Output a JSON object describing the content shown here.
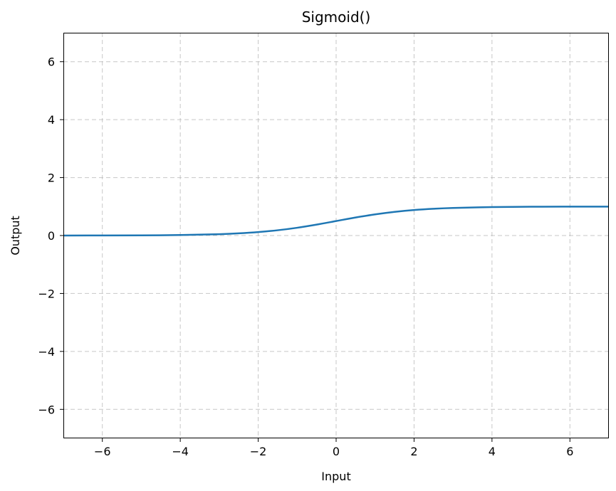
{
  "chart_data": {
    "type": "line",
    "title": "Sigmoid()",
    "xlabel": "Input",
    "ylabel": "Output",
    "xlim": [
      -7,
      7
    ],
    "ylim": [
      -7,
      7
    ],
    "xticks": [
      -6,
      -4,
      -2,
      0,
      2,
      4,
      6
    ],
    "yticks": [
      -6,
      -4,
      -2,
      0,
      2,
      4,
      6
    ],
    "xtick_labels": [
      "−6",
      "−4",
      "−2",
      "0",
      "2",
      "4",
      "6"
    ],
    "ytick_labels": [
      "−6",
      "−4",
      "−2",
      "0",
      "2",
      "4",
      "6"
    ],
    "grid": true,
    "grid_style": "dashed",
    "series": [
      {
        "color": "#1f77b4",
        "x": [
          -7,
          -6,
          -5,
          -4,
          -3,
          -2.5,
          -2,
          -1.5,
          -1,
          -0.5,
          0,
          0.5,
          1,
          1.5,
          2,
          2.5,
          3,
          4,
          5,
          6,
          7
        ],
        "y": [
          0.0009,
          0.0025,
          0.0067,
          0.018,
          0.0474,
          0.0759,
          0.1192,
          0.1824,
          0.2689,
          0.3775,
          0.5,
          0.6225,
          0.7311,
          0.8176,
          0.8808,
          0.9241,
          0.9526,
          0.982,
          0.9933,
          0.9975,
          0.9991
        ]
      }
    ]
  },
  "colors": {
    "line": "#1f77b4",
    "grid": "#b0b0b0",
    "axes": "#000000"
  }
}
